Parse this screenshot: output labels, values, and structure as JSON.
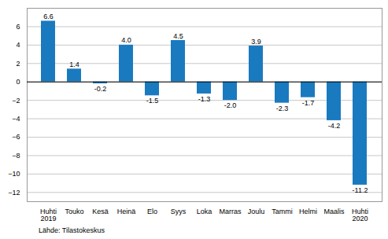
{
  "chart_data": {
    "type": "bar",
    "categories": [
      "Huhti\n2019",
      "Touko",
      "Kesä",
      "Heinä",
      "Elo",
      "Syys",
      "Loka",
      "Marras",
      "Joulu",
      "Tammi",
      "Helmi",
      "Maalis",
      "Huhti\n2020"
    ],
    "values": [
      6.6,
      1.4,
      -0.2,
      4.0,
      -1.5,
      4.5,
      -1.3,
      -2.0,
      3.9,
      -2.3,
      -1.7,
      -4.2,
      -11.2
    ],
    "value_labels": [
      "6.6",
      "1.4",
      "-0.2",
      "4.0",
      "-1.5",
      "4.5",
      "-1.3",
      "-2.0",
      "3.9",
      "-2.3",
      "-1.7",
      "-4.2",
      "-11.2"
    ],
    "color": "#1a7abf",
    "ylim": [
      -13,
      8
    ],
    "yticks": [
      -12,
      -10,
      -8,
      -6,
      -4,
      -2,
      0,
      2,
      4,
      6
    ],
    "grid": true,
    "data_labels": true,
    "annotations": [
      "Lähde: Tilastokeskus"
    ]
  }
}
